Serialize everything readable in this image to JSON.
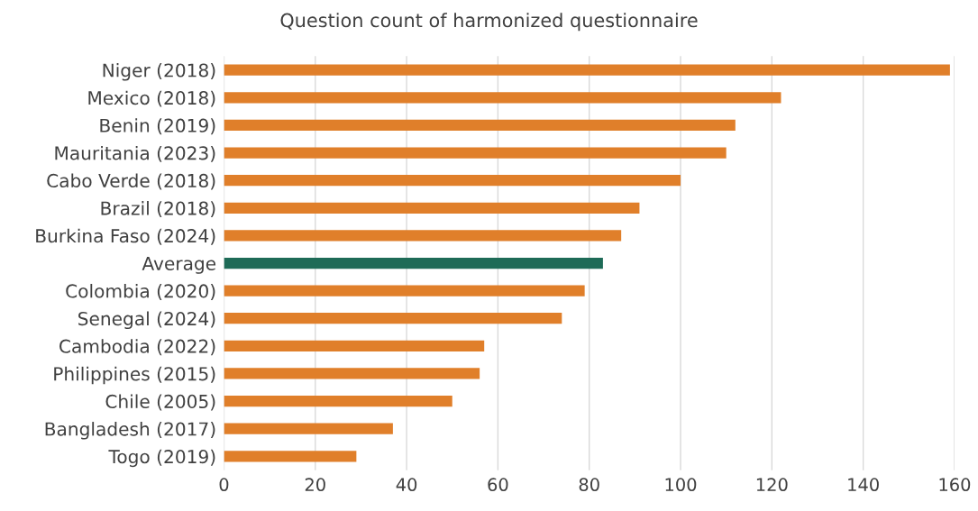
{
  "chart_data": {
    "type": "bar",
    "orientation": "horizontal",
    "title": "Question count of harmonized questionnaire",
    "categories": [
      "Niger (2018)",
      "Mexico (2018)",
      "Benin (2019)",
      "Mauritania (2023)",
      "Cabo Verde (2018)",
      "Brazil (2018)",
      "Burkina Faso (2024)",
      "Average",
      "Colombia (2020)",
      "Senegal (2024)",
      "Cambodia (2022)",
      "Philippines (2015)",
      "Chile (2005)",
      "Bangladesh (2017)",
      "Togo (2019)"
    ],
    "values": [
      159,
      122,
      112,
      110,
      100,
      91,
      87,
      83,
      79,
      74,
      57,
      56,
      50,
      37,
      29
    ],
    "colors": [
      "#e07f2a",
      "#e07f2a",
      "#e07f2a",
      "#e07f2a",
      "#e07f2a",
      "#e07f2a",
      "#e07f2a",
      "#1e6b57",
      "#e07f2a",
      "#e07f2a",
      "#e07f2a",
      "#e07f2a",
      "#e07f2a",
      "#e07f2a",
      "#e07f2a"
    ],
    "xlim": [
      0,
      160
    ],
    "xticks": [
      0,
      20,
      40,
      60,
      80,
      100,
      120,
      140,
      160
    ],
    "grid": "x"
  }
}
